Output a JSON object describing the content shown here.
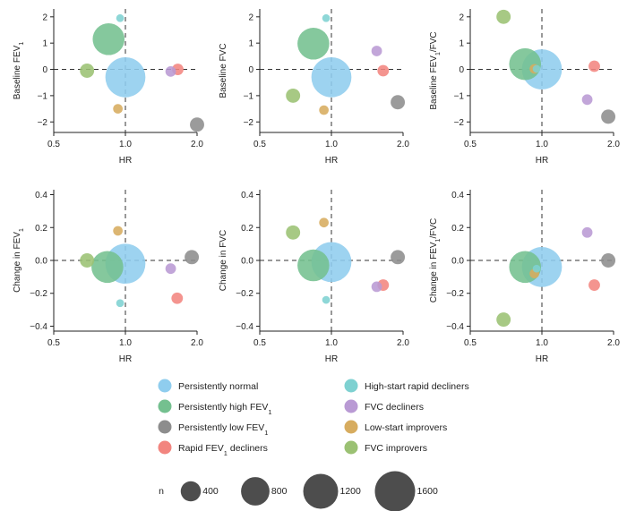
{
  "chart_data": [
    {
      "type": "scatter",
      "title": "",
      "xlabel": "HR",
      "ylabel": "Baseline FEV",
      "ylabel_sub": "1",
      "ylabel_after": "",
      "xscale": "log",
      "xlim": [
        0.5,
        2.0
      ],
      "ylim": [
        -2.4,
        2.3
      ],
      "xticks": [
        0.5,
        1.0,
        2.0
      ],
      "xtick_labels": [
        "0.5",
        "1.0",
        "2.0"
      ],
      "yticks": [
        -2,
        -1,
        0,
        1,
        2
      ],
      "ytick_labels": [
        "−2",
        "−1",
        "0",
        "1",
        "2"
      ],
      "ref_x": 1.0,
      "ref_y": 0,
      "points": [
        {
          "group": "persistently_normal",
          "x": 1.0,
          "y": -0.3
        },
        {
          "group": "persistently_high",
          "x": 0.85,
          "y": 1.15
        },
        {
          "group": "persistently_low",
          "x": 2.0,
          "y": -2.1
        },
        {
          "group": "rapid_decliners",
          "x": 1.66,
          "y": 0.0
        },
        {
          "group": "high_start_rapid",
          "x": 0.95,
          "y": 1.95
        },
        {
          "group": "fvc_decliners",
          "x": 1.55,
          "y": -0.08
        },
        {
          "group": "low_start_improvers",
          "x": 0.93,
          "y": -1.5
        },
        {
          "group": "fvc_improvers",
          "x": 0.69,
          "y": -0.05
        }
      ]
    },
    {
      "type": "scatter",
      "title": "",
      "xlabel": "HR",
      "ylabel": "Baseline FVC",
      "ylabel_sub": "",
      "ylabel_after": "",
      "xscale": "log",
      "xlim": [
        0.5,
        2.0
      ],
      "ylim": [
        -2.4,
        2.3
      ],
      "xticks": [
        0.5,
        1.0,
        2.0
      ],
      "xtick_labels": [
        "0.5",
        "1.0",
        "2.0"
      ],
      "yticks": [
        -2,
        -1,
        0,
        1,
        2
      ],
      "ytick_labels": [
        "−2",
        "−1",
        "0",
        "1",
        "2"
      ],
      "ref_x": 1.0,
      "ref_y": 0,
      "points": [
        {
          "group": "persistently_normal",
          "x": 1.0,
          "y": -0.3
        },
        {
          "group": "persistently_high",
          "x": 0.84,
          "y": 0.98
        },
        {
          "group": "persistently_low",
          "x": 1.9,
          "y": -1.25
        },
        {
          "group": "rapid_decliners",
          "x": 1.65,
          "y": -0.05
        },
        {
          "group": "high_start_rapid",
          "x": 0.95,
          "y": 1.95
        },
        {
          "group": "fvc_decliners",
          "x": 1.55,
          "y": 0.7
        },
        {
          "group": "low_start_improvers",
          "x": 0.93,
          "y": -1.55
        },
        {
          "group": "fvc_improvers",
          "x": 0.69,
          "y": -1.0
        }
      ]
    },
    {
      "type": "scatter",
      "title": "",
      "xlabel": "HR",
      "ylabel": "Baseline FEV",
      "ylabel_sub": "1",
      "ylabel_after": "/FVC",
      "xscale": "log",
      "xlim": [
        0.5,
        2.0
      ],
      "ylim": [
        -2.4,
        2.3
      ],
      "xticks": [
        0.5,
        1.0,
        2.0
      ],
      "xtick_labels": [
        "0.5",
        "1.0",
        "2.0"
      ],
      "yticks": [
        -2,
        -1,
        0,
        1,
        2
      ],
      "ytick_labels": [
        "−2",
        "−1",
        "0",
        "1",
        "2"
      ],
      "ref_x": 1.0,
      "ref_y": 0,
      "points": [
        {
          "group": "persistently_normal",
          "x": 1.0,
          "y": 0.0
        },
        {
          "group": "persistently_high",
          "x": 0.85,
          "y": 0.2
        },
        {
          "group": "persistently_low",
          "x": 1.9,
          "y": -1.8
        },
        {
          "group": "rapid_decliners",
          "x": 1.66,
          "y": 0.12
        },
        {
          "group": "high_start_rapid",
          "x": 0.95,
          "y": 0.02
        },
        {
          "group": "fvc_decliners",
          "x": 1.55,
          "y": -1.15
        },
        {
          "group": "low_start_improvers",
          "x": 0.93,
          "y": 0.02
        },
        {
          "group": "fvc_improvers",
          "x": 0.69,
          "y": 2.0
        }
      ]
    },
    {
      "type": "scatter",
      "title": "",
      "xlabel": "HR",
      "ylabel": "Change in FEV",
      "ylabel_sub": "1",
      "ylabel_after": "",
      "xscale": "log",
      "xlim": [
        0.5,
        2.0
      ],
      "ylim": [
        -0.43,
        0.43
      ],
      "xticks": [
        0.5,
        1.0,
        2.0
      ],
      "xtick_labels": [
        "0.5",
        "1.0",
        "2.0"
      ],
      "yticks": [
        -0.4,
        -0.2,
        0.0,
        0.2,
        0.4
      ],
      "ytick_labels": [
        "−0.4",
        "−0.2",
        "0.0",
        "0.2",
        "0.4"
      ],
      "ref_x": 1.0,
      "ref_y": 0,
      "points": [
        {
          "group": "persistently_normal",
          "x": 1.0,
          "y": -0.02
        },
        {
          "group": "persistently_high",
          "x": 0.84,
          "y": -0.04
        },
        {
          "group": "persistently_low",
          "x": 1.9,
          "y": 0.02
        },
        {
          "group": "rapid_decliners",
          "x": 1.65,
          "y": -0.23
        },
        {
          "group": "high_start_rapid",
          "x": 0.95,
          "y": -0.26
        },
        {
          "group": "fvc_decliners",
          "x": 1.55,
          "y": -0.05
        },
        {
          "group": "low_start_improvers",
          "x": 0.93,
          "y": 0.18
        },
        {
          "group": "fvc_improvers",
          "x": 0.69,
          "y": 0.0
        }
      ]
    },
    {
      "type": "scatter",
      "title": "",
      "xlabel": "HR",
      "ylabel": "Change in FVC",
      "ylabel_sub": "",
      "ylabel_after": "",
      "xscale": "log",
      "xlim": [
        0.5,
        2.0
      ],
      "ylim": [
        -0.43,
        0.43
      ],
      "xticks": [
        0.5,
        1.0,
        2.0
      ],
      "xtick_labels": [
        "0.5",
        "1.0",
        "2.0"
      ],
      "yticks": [
        -0.4,
        -0.2,
        0.0,
        0.2,
        0.4
      ],
      "ytick_labels": [
        "−0.4",
        "−0.2",
        "0.0",
        "0.2",
        "0.4"
      ],
      "ref_x": 1.0,
      "ref_y": 0,
      "points": [
        {
          "group": "persistently_normal",
          "x": 1.0,
          "y": -0.01
        },
        {
          "group": "persistently_high",
          "x": 0.84,
          "y": -0.03
        },
        {
          "group": "persistently_low",
          "x": 1.9,
          "y": 0.02
        },
        {
          "group": "rapid_decliners",
          "x": 1.65,
          "y": -0.15
        },
        {
          "group": "high_start_rapid",
          "x": 0.95,
          "y": -0.24
        },
        {
          "group": "fvc_decliners",
          "x": 1.55,
          "y": -0.16
        },
        {
          "group": "low_start_improvers",
          "x": 0.93,
          "y": 0.23
        },
        {
          "group": "fvc_improvers",
          "x": 0.69,
          "y": 0.17
        }
      ]
    },
    {
      "type": "scatter",
      "title": "",
      "xlabel": "HR",
      "ylabel": "Change in FEV",
      "ylabel_sub": "1",
      "ylabel_after": "/FVC",
      "xscale": "log",
      "xlim": [
        0.5,
        2.0
      ],
      "ylim": [
        -0.43,
        0.43
      ],
      "xticks": [
        0.5,
        1.0,
        2.0
      ],
      "xtick_labels": [
        "0.5",
        "1.0",
        "2.0"
      ],
      "yticks": [
        -0.4,
        -0.2,
        0.0,
        0.2,
        0.4
      ],
      "ytick_labels": [
        "−0.4",
        "−0.2",
        "0.0",
        "0.2",
        "0.4"
      ],
      "ref_x": 1.0,
      "ref_y": 0,
      "points": [
        {
          "group": "persistently_normal",
          "x": 1.0,
          "y": -0.04
        },
        {
          "group": "persistently_high",
          "x": 0.85,
          "y": -0.04
        },
        {
          "group": "persistently_low",
          "x": 1.9,
          "y": 0.0
        },
        {
          "group": "rapid_decliners",
          "x": 1.66,
          "y": -0.15
        },
        {
          "group": "high_start_rapid",
          "x": 0.95,
          "y": -0.05
        },
        {
          "group": "fvc_decliners",
          "x": 1.55,
          "y": 0.17
        },
        {
          "group": "low_start_improvers",
          "x": 0.93,
          "y": -0.08
        },
        {
          "group": "fvc_improvers",
          "x": 0.69,
          "y": -0.36
        }
      ]
    }
  ],
  "groups": [
    {
      "id": "persistently_normal",
      "label": "Persistently normal",
      "label_sub": "",
      "label_after": "",
      "color": "#8fcdee",
      "n": 1580
    },
    {
      "id": "persistently_high",
      "label": "Persistently high FEV",
      "label_sub": "1",
      "label_after": "",
      "color": "#74c08f",
      "n": 1000
    },
    {
      "id": "persistently_low",
      "label": "Persistently low FEV",
      "label_sub": "1",
      "label_after": "",
      "color": "#8d8d8d",
      "n": 200
    },
    {
      "id": "rapid_decliners",
      "label": "Rapid FEV",
      "label_sub": "1",
      "label_after": " decliners",
      "color": "#f2857f",
      "n": 130
    },
    {
      "id": "high_start_rapid",
      "label": "High-start rapid decliners",
      "label_sub": "",
      "label_after": "",
      "color": "#7ed1d1",
      "n": 60
    },
    {
      "id": "fvc_decliners",
      "label": "FVC decliners",
      "label_sub": "",
      "label_after": "",
      "color": "#b99ad4",
      "n": 110
    },
    {
      "id": "low_start_improvers",
      "label": "Low-start improvers",
      "label_sub": "",
      "label_after": "",
      "color": "#d7ac5f",
      "n": 90
    },
    {
      "id": "fvc_improvers",
      "label": "FVC improvers",
      "label_sub": "",
      "label_after": "",
      "color": "#9bc173",
      "n": 200
    }
  ],
  "size_legend": {
    "title": "n",
    "color": "#4d4d4d",
    "items": [
      {
        "n": 400,
        "label": "400"
      },
      {
        "n": 800,
        "label": "800"
      },
      {
        "n": 1200,
        "label": "1200"
      },
      {
        "n": 1600,
        "label": "1600"
      }
    ]
  }
}
